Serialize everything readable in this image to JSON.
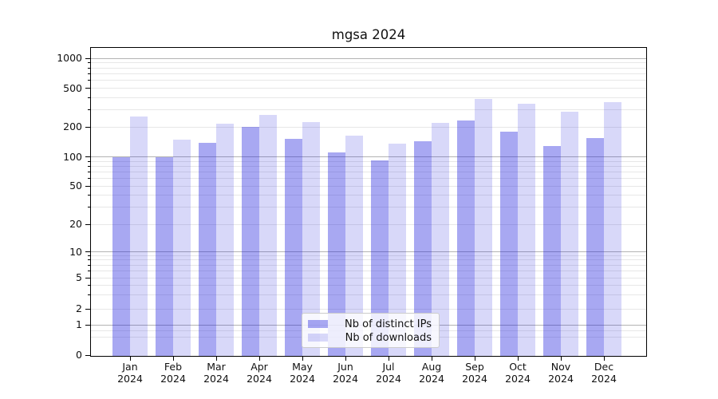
{
  "chart_data": {
    "type": "bar",
    "title": "mgsa 2024",
    "categories": [
      "Jan 2024",
      "Feb 2024",
      "Mar 2024",
      "Apr 2024",
      "May 2024",
      "Jun 2024",
      "Jul 2024",
      "Aug 2024",
      "Sep 2024",
      "Oct 2024",
      "Nov 2024",
      "Dec 2024"
    ],
    "series": [
      {
        "name": "Nb of distinct IPs",
        "color": "#a8a8f2",
        "values": [
          100,
          100,
          138,
          200,
          152,
          112,
          92,
          143,
          234,
          180,
          130,
          156
        ]
      },
      {
        "name": "Nb of downloads",
        "color": "#d9d9f9",
        "values": [
          255,
          150,
          215,
          268,
          225,
          164,
          136,
          220,
          390,
          348,
          289,
          360
        ]
      }
    ],
    "xlabel": "",
    "ylabel": "",
    "y_axis": {
      "scale": "symlog",
      "tick_labels": [
        "1000",
        "500",
        "200",
        "100",
        "50",
        "20",
        "10",
        "5",
        "2",
        "1",
        "0"
      ],
      "tick_values": [
        1000,
        500,
        200,
        100,
        50,
        20,
        10,
        5,
        2,
        1,
        0
      ],
      "ylim": [
        0,
        1000
      ]
    },
    "grid": true,
    "legend": {
      "position": "lower center",
      "entries": [
        "Nb of distinct IPs",
        "Nb of downloads"
      ]
    },
    "colors": {
      "bar_base": "#1919dc",
      "gridline_major": "#b3b3b3",
      "gridline_minor": "#e7e7e7",
      "text": "#111111"
    }
  }
}
